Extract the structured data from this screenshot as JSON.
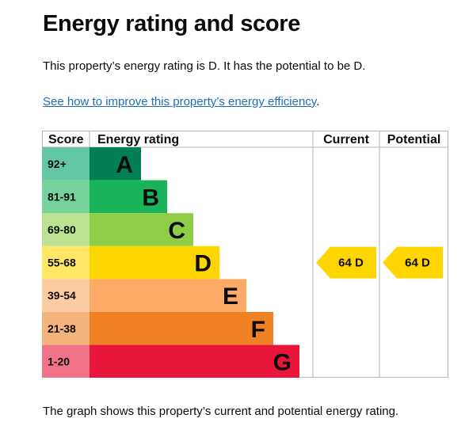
{
  "page": {
    "title": "Energy rating and score",
    "summary": "This property’s energy rating is D. It has the potential to be D.",
    "improve_link": "See how to improve this property’s energy efficiency",
    "improve_suffix": ".",
    "footnote": "The graph shows this property’s current and potential energy rating."
  },
  "chart_data": {
    "type": "bar",
    "headers": {
      "score": "Score",
      "rating": "Energy rating",
      "current": "Current",
      "potential": "Potential"
    },
    "bands": [
      {
        "range": "92+",
        "letter": "A",
        "color": "#008054",
        "range_color": "#64c7a3"
      },
      {
        "range": "81-91",
        "letter": "B",
        "color": "#19b459",
        "range_color": "#75d29b"
      },
      {
        "range": "69-80",
        "letter": "C",
        "color": "#8dce46",
        "range_color": "#bbe290"
      },
      {
        "range": "55-68",
        "letter": "D",
        "color": "#ffd500",
        "range_color": "#ffe666"
      },
      {
        "range": "39-54",
        "letter": "E",
        "color": "#fcaa65",
        "range_color": "#fdcba2"
      },
      {
        "range": "21-38",
        "letter": "F",
        "color": "#ef8023",
        "range_color": "#f5b37c"
      },
      {
        "range": "1-20",
        "letter": "G",
        "color": "#e9153b",
        "range_color": "#f27389"
      }
    ],
    "current": {
      "score": 64,
      "band": "D",
      "label": "64  D"
    },
    "potential": {
      "score": 64,
      "band": "D",
      "label": "64  D"
    }
  }
}
